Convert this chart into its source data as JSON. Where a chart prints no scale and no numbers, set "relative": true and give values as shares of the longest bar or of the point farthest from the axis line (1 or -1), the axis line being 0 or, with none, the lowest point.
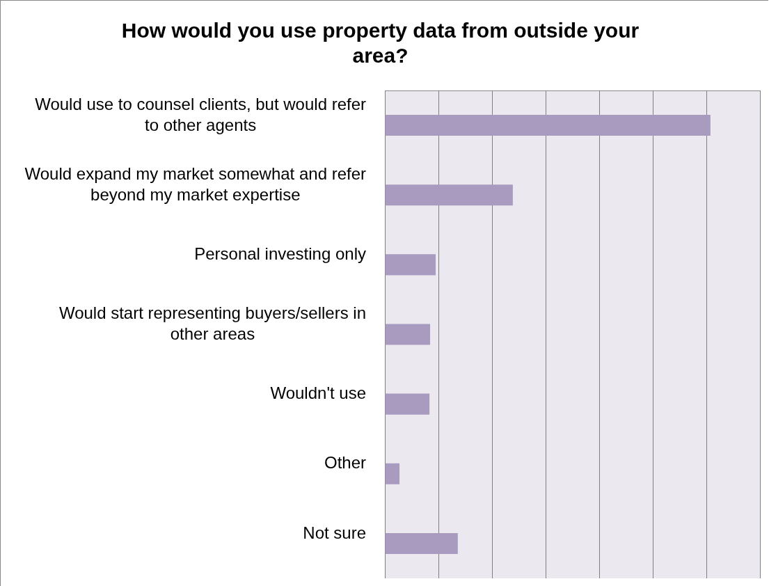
{
  "chart_data": {
    "type": "bar",
    "orientation": "horizontal",
    "relative": true,
    "title": "How would you use property data from outside your area?",
    "categories": [
      "Would use to counsel clients, but would refer to other agents",
      "Would expand my market somewhat and refer beyond my market expertise",
      "Personal investing only",
      "Would start representing buyers/sellers in other areas",
      "Wouldn't use",
      "Other",
      "Not sure"
    ],
    "values": [
      1,
      0.393,
      0.156,
      0.139,
      0.137,
      0.045,
      0.224
    ],
    "color": "#a99bc0",
    "grid": "x",
    "legend": false,
    "tick_labels": "y"
  }
}
